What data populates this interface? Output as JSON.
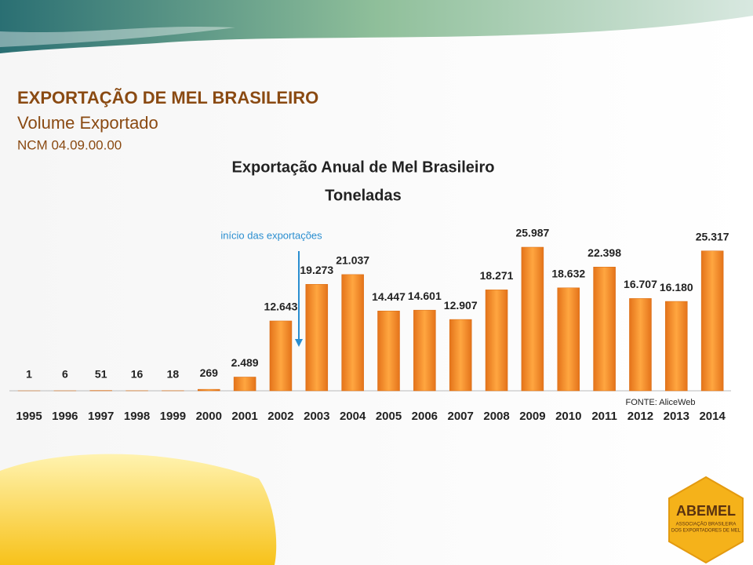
{
  "slide": {
    "title": "EXPORTAÇÃO DE MEL BRASILEIRO",
    "subtitle": "Volume Exportado",
    "code": "NCM 04.09.00.00",
    "source": "FONTE: AliceWeb",
    "logo": {
      "name": "ABEMEL",
      "line1": "ASSOCIAÇÃO BRASILEIRA",
      "line2": "DOS EXPORTADORES DE MEL"
    }
  },
  "chart_data": {
    "type": "bar",
    "title": "Exportação Anual de Mel Brasileiro",
    "subtitle": "Toneladas",
    "annotation": "início das exportações",
    "categories": [
      "1995",
      "1996",
      "1997",
      "1998",
      "1999",
      "2000",
      "2001",
      "2002",
      "2003",
      "2004",
      "2005",
      "2006",
      "2007",
      "2008",
      "2009",
      "2010",
      "2011",
      "2012",
      "2013",
      "2014"
    ],
    "values": [
      1,
      6,
      51,
      16,
      18,
      269,
      2489,
      12643,
      19273,
      21037,
      14447,
      14601,
      12907,
      18271,
      25987,
      18632,
      22398,
      16707,
      16180,
      25317
    ],
    "value_labels": [
      "1",
      "6",
      "51",
      "16",
      "18",
      "269",
      "2.489",
      "12.643",
      "19.273",
      "21.037",
      "14.447",
      "14.601",
      "12.907",
      "18.271",
      "25.987",
      "18.632",
      "22.398",
      "16.707",
      "16.180",
      "25.317"
    ],
    "color": "#f08a1c"
  }
}
